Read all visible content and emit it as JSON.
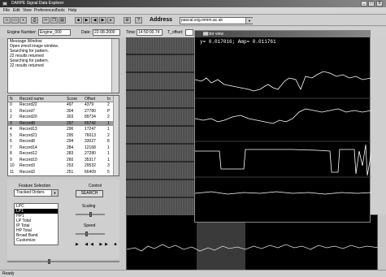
{
  "window": {
    "title": "DARPE Signal Data Explorer",
    "controls": [
      "_",
      "□",
      "X"
    ]
  },
  "menu": [
    "File",
    "Edit",
    "View",
    "Preferences",
    "Tools",
    "Help"
  ],
  "toolbar": {
    "address_label": "Address",
    "address_value": "pascal.vsg.mmm.ac.uk"
  },
  "fields": {
    "engine_label": "Engine Number:",
    "engine_value": "Engine_000",
    "date_label": "Date:",
    "date_value": "22-08-2000",
    "time_label": "Time:",
    "time_value": "14:50:00.74",
    "offset_label": "T_offset:"
  },
  "messages": {
    "lines": [
      "Message Window",
      "Open zmod image window.",
      "Searching for pattern.",
      "22 results returned",
      "Searching for pattern.",
      "22 results returned"
    ]
  },
  "records": {
    "headers": [
      "N",
      "Record name",
      "Score",
      "Offset",
      "In"
    ],
    "rows": [
      [
        "0",
        "Record22",
        "497",
        "4379",
        "2"
      ],
      [
        "1",
        "Record7",
        "304",
        "27780",
        "P"
      ],
      [
        "2",
        "Record20",
        "303",
        "89734",
        "2"
      ],
      [
        "3",
        "Record8",
        "297",
        "65742",
        "1"
      ],
      [
        "4",
        "Record13",
        "296",
        "17247",
        "1"
      ],
      [
        "5",
        "Record21",
        "295",
        "76013",
        "2"
      ],
      [
        "6",
        "Record8",
        "294",
        "33027",
        "8"
      ],
      [
        "7",
        "Record14",
        "284",
        "12168",
        "1"
      ],
      [
        "8",
        "Record12",
        "283",
        "27280",
        "1"
      ],
      [
        "9",
        "Record10",
        "260",
        "35317",
        "1"
      ],
      [
        "10",
        "Record3",
        "253",
        "29532",
        "3"
      ],
      [
        "11",
        "Record3",
        "251",
        "66409",
        "5"
      ]
    ],
    "selected_index": 3
  },
  "features": {
    "title": "Feature Selection",
    "selected": "Tracked Orders",
    "items": [
      "LPC",
      "LP1",
      "HP1",
      "LP Total",
      "IP Total",
      "HP Total",
      "Broad Band",
      "Customize"
    ],
    "selected_item": 1
  },
  "control": {
    "title": "Control",
    "search_label": "SEARCH",
    "scaling_label": "Scaling",
    "speed_label": "Speed",
    "playback_glyphs": "▶ ◀◀ ▶▶ ■"
  },
  "vector_view": {
    "title": "vector view",
    "readout": "y= 0.017016;  Amp= 0.011761"
  },
  "status": {
    "text": "Ready"
  }
}
